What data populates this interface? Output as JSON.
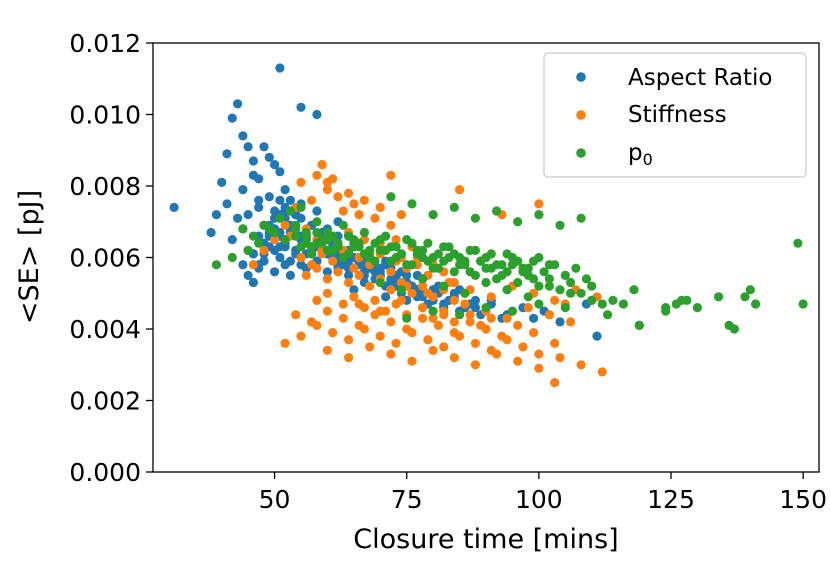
{
  "chart_data": {
    "type": "scatter",
    "title": "",
    "xlabel": "Closure time [mins]",
    "ylabel": "<SE> [pJ]",
    "xlim": [
      27,
      153
    ],
    "ylim": [
      0.0,
      0.012
    ],
    "xticks": [
      50,
      75,
      100,
      125,
      150
    ],
    "xtick_labels": [
      "50",
      "75",
      "100",
      "125",
      "150"
    ],
    "yticks": [
      0.0,
      0.002,
      0.004,
      0.006,
      0.008,
      0.01,
      0.012
    ],
    "ytick_labels": [
      "0.000",
      "0.002",
      "0.004",
      "0.006",
      "0.008",
      "0.010",
      "0.012"
    ],
    "grid": false,
    "legend_position": "top-right",
    "series": [
      {
        "name": "Aspect Ratio",
        "legend_label": "Aspect Ratio",
        "color": "#1f77b4",
        "x": [
          31,
          38,
          39,
          40,
          41,
          42,
          43,
          44,
          45,
          46,
          47,
          48,
          49,
          51,
          52,
          41,
          43,
          44,
          46,
          47,
          48,
          49,
          50,
          51,
          52,
          42,
          44,
          45,
          46,
          48,
          49,
          50,
          51,
          52,
          53,
          44,
          45,
          47,
          48,
          49,
          50,
          51,
          52,
          53,
          54,
          45,
          46,
          47,
          48,
          49,
          50,
          51,
          52,
          53,
          55,
          46,
          47,
          48,
          50,
          51,
          52,
          53,
          54,
          55,
          56,
          47,
          48,
          49,
          50,
          51,
          52,
          53,
          54,
          55,
          57,
          51,
          53,
          55,
          56,
          57,
          58,
          60,
          61,
          62,
          64,
          52,
          54,
          56,
          57,
          58,
          59,
          61,
          62,
          63,
          65,
          53,
          55,
          57,
          58,
          60,
          61,
          62,
          63,
          64,
          66,
          55,
          57,
          59,
          60,
          61,
          63,
          64,
          65,
          67,
          68,
          56,
          58,
          60,
          62,
          63,
          64,
          66,
          67,
          68,
          70,
          58,
          60,
          62,
          64,
          65,
          67,
          68,
          69,
          71,
          72,
          60,
          62,
          64,
          66,
          67,
          69,
          70,
          72,
          73,
          75,
          62,
          64,
          66,
          68,
          70,
          71,
          73,
          74,
          76,
          77,
          65,
          67,
          69,
          71,
          72,
          74,
          75,
          77,
          78,
          80,
          68,
          70,
          72,
          74,
          75,
          77,
          78,
          80,
          81,
          83,
          71,
          73,
          75,
          77,
          79,
          81,
          82,
          84,
          85,
          87,
          76,
          78,
          80,
          82,
          84,
          86,
          88,
          89,
          91,
          93,
          85,
          88,
          91,
          94,
          97,
          99,
          101,
          104,
          109,
          111,
          119,
          51,
          58,
          55
        ],
        "y": [
          0.0074,
          0.0067,
          0.0072,
          0.0081,
          0.0089,
          0.0099,
          0.0103,
          0.0094,
          0.0091,
          0.0087,
          0.0082,
          0.0091,
          0.0088,
          0.0084,
          0.0079,
          0.0075,
          0.0071,
          0.0079,
          0.0083,
          0.0076,
          0.0069,
          0.0077,
          0.0086,
          0.0072,
          0.0074,
          0.0065,
          0.0068,
          0.0072,
          0.0061,
          0.0064,
          0.0069,
          0.0073,
          0.0067,
          0.0071,
          0.0076,
          0.0058,
          0.0062,
          0.0066,
          0.0059,
          0.0063,
          0.0068,
          0.0071,
          0.0065,
          0.0069,
          0.0072,
          0.0055,
          0.0061,
          0.0057,
          0.0064,
          0.0067,
          0.0062,
          0.0066,
          0.0063,
          0.0068,
          0.0065,
          0.0053,
          0.0058,
          0.0061,
          0.0056,
          0.006,
          0.0064,
          0.0059,
          0.0062,
          0.0066,
          0.0061,
          0.0074,
          0.0069,
          0.0066,
          0.0071,
          0.0076,
          0.0073,
          0.0068,
          0.0072,
          0.0075,
          0.0069,
          0.0063,
          0.0067,
          0.0071,
          0.0066,
          0.0069,
          0.0073,
          0.0068,
          0.0065,
          0.007,
          0.0066,
          0.0058,
          0.0061,
          0.0065,
          0.0062,
          0.0064,
          0.0067,
          0.0063,
          0.0066,
          0.0061,
          0.0064,
          0.0055,
          0.0058,
          0.0061,
          0.0059,
          0.0062,
          0.006,
          0.0063,
          0.0058,
          0.0061,
          0.0059,
          0.0066,
          0.0063,
          0.0065,
          0.0061,
          0.0064,
          0.0062,
          0.006,
          0.0063,
          0.0059,
          0.0062,
          0.0057,
          0.0059,
          0.0056,
          0.0058,
          0.0061,
          0.0057,
          0.0059,
          0.0055,
          0.0058,
          0.0056,
          0.0063,
          0.0061,
          0.0059,
          0.0062,
          0.006,
          0.0058,
          0.0061,
          0.0057,
          0.0059,
          0.0056,
          0.0054,
          0.0057,
          0.0055,
          0.0058,
          0.0056,
          0.0054,
          0.0057,
          0.0053,
          0.0055,
          0.0052,
          0.0061,
          0.0058,
          0.006,
          0.0057,
          0.0055,
          0.0058,
          0.0054,
          0.0056,
          0.0052,
          0.0055,
          0.0051,
          0.0053,
          0.0056,
          0.0052,
          0.0054,
          0.005,
          0.0053,
          0.0049,
          0.0051,
          0.0048,
          0.0058,
          0.0055,
          0.0057,
          0.0053,
          0.0055,
          0.0051,
          0.0054,
          0.0049,
          0.0052,
          0.0048,
          0.0049,
          0.0052,
          0.0048,
          0.0051,
          0.0047,
          0.005,
          0.0046,
          0.0049,
          0.0045,
          0.0047,
          0.0052,
          0.0049,
          0.0051,
          0.0047,
          0.005,
          0.0046,
          0.0048,
          0.0044,
          0.0047,
          0.0043,
          0.0051,
          0.0046,
          0.0048,
          0.0044,
          0.0046,
          0.0043,
          0.0045,
          0.0042,
          0.0047,
          0.0038,
          0.0041,
          0.0113,
          0.01,
          0.0102
        ],
        "marker_size": 4.6
      },
      {
        "name": "Stiffness",
        "legend_label": "Stiffness",
        "color": "#ff7f0e",
        "x": [
          46,
          48,
          50,
          52,
          54,
          55,
          57,
          58,
          59,
          60,
          61,
          62,
          63,
          64,
          65,
          66,
          67,
          69,
          70,
          72,
          74,
          53,
          55,
          56,
          58,
          59,
          61,
          62,
          64,
          65,
          67,
          68,
          70,
          71,
          73,
          74,
          76,
          77,
          55,
          57,
          59,
          61,
          63,
          65,
          66,
          68,
          70,
          72,
          73,
          75,
          77,
          79,
          80,
          82,
          84,
          56,
          58,
          60,
          62,
          64,
          66,
          68,
          70,
          72,
          74,
          76,
          78,
          80,
          82,
          84,
          86,
          58,
          60,
          63,
          65,
          67,
          69,
          71,
          73,
          75,
          78,
          80,
          82,
          84,
          87,
          89,
          91,
          54,
          57,
          60,
          63,
          66,
          69,
          72,
          75,
          78,
          81,
          84,
          87,
          90,
          93,
          96,
          99,
          52,
          55,
          58,
          61,
          64,
          67,
          70,
          73,
          76,
          79,
          82,
          85,
          88,
          91,
          94,
          97,
          100,
          103,
          60,
          64,
          68,
          72,
          76,
          80,
          84,
          88,
          92,
          96,
          100,
          104,
          108,
          112,
          66,
          70,
          74,
          78,
          82,
          86,
          90,
          94,
          98,
          102,
          106,
          75,
          79,
          83,
          87,
          91,
          95,
          99,
          103,
          107,
          111,
          59,
          72,
          85,
          93,
          60,
          100,
          105,
          103
        ],
        "y": [
          0.0058,
          0.0062,
          0.0065,
          0.0069,
          0.0074,
          0.0081,
          0.0076,
          0.0083,
          0.0086,
          0.0079,
          0.0082,
          0.0077,
          0.0073,
          0.0078,
          0.0075,
          0.0072,
          0.0076,
          0.0071,
          0.0074,
          0.0069,
          0.0072,
          0.0066,
          0.0063,
          0.0068,
          0.0065,
          0.0062,
          0.0066,
          0.0064,
          0.0067,
          0.0063,
          0.0065,
          0.0061,
          0.0064,
          0.0062,
          0.0065,
          0.006,
          0.0063,
          0.0058,
          0.006,
          0.0058,
          0.0061,
          0.0059,
          0.0062,
          0.0057,
          0.006,
          0.0058,
          0.0061,
          0.0056,
          0.0059,
          0.0057,
          0.006,
          0.0055,
          0.0058,
          0.0056,
          0.0053,
          0.0055,
          0.0057,
          0.0054,
          0.0056,
          0.0053,
          0.0055,
          0.0052,
          0.0054,
          0.0051,
          0.0053,
          0.005,
          0.0052,
          0.0049,
          0.0051,
          0.0048,
          0.005,
          0.0048,
          0.005,
          0.0047,
          0.0049,
          0.0046,
          0.0048,
          0.0045,
          0.0047,
          0.0044,
          0.0046,
          0.0043,
          0.0045,
          0.0042,
          0.0044,
          0.0041,
          0.0043,
          0.0044,
          0.0042,
          0.0045,
          0.0043,
          0.0041,
          0.0044,
          0.0042,
          0.004,
          0.0043,
          0.0041,
          0.0039,
          0.0042,
          0.004,
          0.0038,
          0.0041,
          0.0039,
          0.0036,
          0.0038,
          0.0041,
          0.0039,
          0.0037,
          0.004,
          0.0038,
          0.0036,
          0.0039,
          0.0037,
          0.0035,
          0.0038,
          0.0036,
          0.0034,
          0.0037,
          0.0035,
          0.0033,
          0.0036,
          0.0034,
          0.0032,
          0.0035,
          0.0033,
          0.0031,
          0.0034,
          0.0032,
          0.003,
          0.0033,
          0.0031,
          0.0029,
          0.0032,
          0.003,
          0.0028,
          0.0047,
          0.0045,
          0.0048,
          0.0046,
          0.0044,
          0.0047,
          0.0045,
          0.0043,
          0.0046,
          0.0044,
          0.0042,
          0.0052,
          0.005,
          0.0053,
          0.0051,
          0.0049,
          0.0052,
          0.005,
          0.0048,
          0.0051,
          0.0049,
          0.0086,
          0.0083,
          0.0079,
          0.0072,
          0.0081,
          0.0075,
          0.0047,
          0.0025
        ],
        "marker_size": 4.6
      },
      {
        "name": "p0",
        "legend_label": "p",
        "legend_subscript": "0",
        "color": "#2ca02c",
        "x": [
          39,
          42,
          45,
          47,
          49,
          51,
          53,
          54,
          55,
          56,
          57,
          58,
          59,
          60,
          61,
          62,
          63,
          64,
          65,
          66,
          67,
          68,
          69,
          70,
          71,
          72,
          73,
          74,
          75,
          76,
          77,
          78,
          79,
          80,
          81,
          82,
          83,
          84,
          85,
          86,
          87,
          88,
          89,
          90,
          91,
          92,
          93,
          94,
          95,
          96,
          97,
          98,
          99,
          100,
          101,
          102,
          103,
          104,
          105,
          106,
          107,
          108,
          109,
          110,
          112,
          113,
          114,
          116,
          118,
          119,
          124,
          124,
          126,
          127,
          128,
          130,
          134,
          136,
          137,
          139,
          140,
          141,
          149,
          150,
          55,
          57,
          59,
          61,
          63,
          65,
          67,
          69,
          71,
          73,
          75,
          77,
          79,
          81,
          83,
          85,
          87,
          89,
          91,
          93,
          95,
          97,
          99,
          54,
          56,
          58,
          60,
          62,
          64,
          66,
          68,
          70,
          72,
          74,
          76,
          78,
          80,
          82,
          84,
          86,
          88,
          90,
          92,
          94,
          96,
          98,
          100,
          102,
          72,
          76,
          80,
          84,
          88,
          92,
          96,
          100,
          104,
          108,
          44,
          46,
          48,
          50,
          52,
          54,
          56,
          58,
          60,
          70,
          74,
          78,
          82,
          86,
          90,
          94,
          98,
          102,
          106,
          110,
          75,
          80,
          85,
          90,
          95,
          100,
          105,
          110
        ],
        "y": [
          0.0058,
          0.006,
          0.0062,
          0.0064,
          0.0068,
          0.0071,
          0.0073,
          0.0069,
          0.0074,
          0.0067,
          0.0063,
          0.007,
          0.0065,
          0.0062,
          0.0066,
          0.0064,
          0.0069,
          0.0061,
          0.0065,
          0.0063,
          0.0067,
          0.006,
          0.0064,
          0.0062,
          0.0066,
          0.0059,
          0.0063,
          0.0061,
          0.0065,
          0.0058,
          0.0062,
          0.006,
          0.0064,
          0.0057,
          0.0061,
          0.0059,
          0.0063,
          0.0056,
          0.006,
          0.0058,
          0.0062,
          0.0055,
          0.0059,
          0.0057,
          0.0061,
          0.0054,
          0.0058,
          0.0056,
          0.006,
          0.0053,
          0.0057,
          0.0055,
          0.0059,
          0.0052,
          0.0056,
          0.0054,
          0.0058,
          0.0051,
          0.0055,
          0.0053,
          0.0057,
          0.005,
          0.0054,
          0.0052,
          0.0047,
          0.0044,
          0.0048,
          0.0047,
          0.0051,
          0.0041,
          0.0045,
          0.0046,
          0.0047,
          0.0048,
          0.0048,
          0.0046,
          0.0049,
          0.0041,
          0.004,
          0.0049,
          0.0051,
          0.0047,
          0.0064,
          0.0047,
          0.0063,
          0.0061,
          0.0064,
          0.0062,
          0.006,
          0.0063,
          0.0061,
          0.0059,
          0.0062,
          0.006,
          0.0058,
          0.0061,
          0.0059,
          0.0057,
          0.006,
          0.0058,
          0.0056,
          0.0059,
          0.0057,
          0.0055,
          0.0058,
          0.0056,
          0.0054,
          0.0066,
          0.0064,
          0.0067,
          0.0065,
          0.0063,
          0.0066,
          0.0064,
          0.0062,
          0.0065,
          0.0063,
          0.0061,
          0.0064,
          0.0062,
          0.006,
          0.0063,
          0.0061,
          0.0059,
          0.0062,
          0.006,
          0.0058,
          0.0061,
          0.0059,
          0.0057,
          0.006,
          0.0058,
          0.0077,
          0.0075,
          0.0072,
          0.0074,
          0.0071,
          0.0073,
          0.007,
          0.0072,
          0.0069,
          0.0071,
          0.0068,
          0.0066,
          0.0069,
          0.0067,
          0.0065,
          0.0068,
          0.0066,
          0.0064,
          0.0067,
          0.0053,
          0.0051,
          0.0054,
          0.0052,
          0.005,
          0.0053,
          0.0051,
          0.0049,
          0.0052,
          0.005,
          0.0048,
          0.0043,
          0.0045,
          0.0044,
          0.0046,
          0.0045,
          0.0047,
          0.0046,
          0.0048
        ],
        "marker_size": 4.6
      }
    ]
  }
}
